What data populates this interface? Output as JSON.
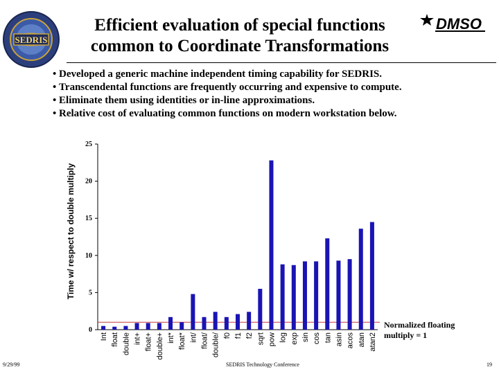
{
  "slide": {
    "title_line1": "Efficient evaluation of special functions",
    "title_line2": "common to Coordinate Transformations",
    "bullets": [
      "Developed a generic machine independent  timing capability for SEDRIS.",
      "Transcendental functions are frequently occurring and expensive to compute.",
      "Eliminate them using identities or in-line approximations.",
      "Relative cost of evaluating common functions on modern workstation below."
    ],
    "left_logo_text": "SEDRIS",
    "right_logo_text": "DMSO",
    "footer_date": "9/29/99",
    "footer_center": "SEDRIS Technology Conference",
    "footer_page": "19",
    "normalized_note": "Normalized floating multiply = 1"
  },
  "colors": {
    "bar": "#1a14b4",
    "reference_line": "#c03a3a",
    "text": "#000000"
  },
  "chart_data": {
    "type": "bar",
    "ylabel": "Time w/ respect to double multiply",
    "ylim": [
      0,
      25
    ],
    "yticks": [
      "0",
      "5",
      "10",
      "15",
      "20",
      "25"
    ],
    "grid": false,
    "reference_line": 1,
    "categories": [
      "Int",
      "float",
      "double",
      "int+",
      "float+",
      "double+",
      "int*",
      "float*",
      "int/",
      "float/",
      "double/",
      "f0",
      "f1",
      "f2",
      "sqrt",
      "pow",
      "log",
      "exp",
      "sin",
      "cos",
      "tan",
      "asin",
      "acos",
      "atan",
      "atan2"
    ],
    "values": [
      0.5,
      0.4,
      0.5,
      0.9,
      0.9,
      0.9,
      1.7,
      1.0,
      4.8,
      1.7,
      2.4,
      1.7,
      2.1,
      2.4,
      5.5,
      22.8,
      8.8,
      8.7,
      9.2,
      9.2,
      12.3,
      9.3,
      9.5,
      13.6,
      14.5
    ]
  }
}
